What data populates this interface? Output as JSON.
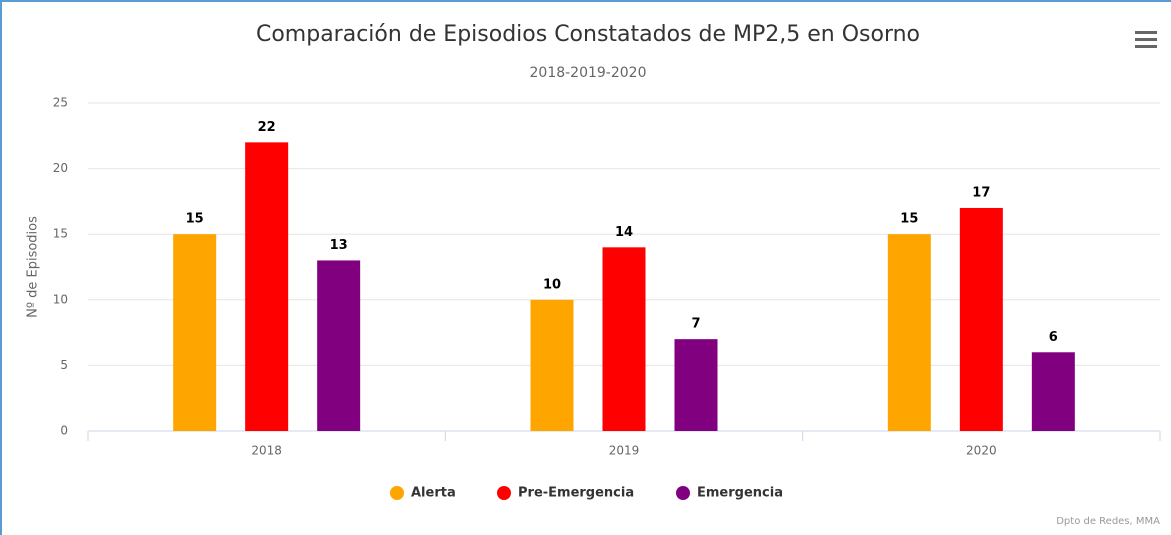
{
  "chart_data": {
    "type": "bar",
    "title": "Comparación de Episodios Constatados de MP2,5 en Osorno",
    "subtitle": "2018-2019-2020",
    "y_label": "Nº de Episodios",
    "credits": "Dpto de Redes, MMA",
    "categories": [
      "2018",
      "2019",
      "2020"
    ],
    "series": [
      {
        "name": "Alerta",
        "color": "#ffa500",
        "values": [
          15,
          10,
          15
        ]
      },
      {
        "name": "Pre-Emergencia",
        "color": "#ff0000",
        "values": [
          22,
          14,
          17
        ]
      },
      {
        "name": "Emergencia",
        "color": "#800080",
        "values": [
          13,
          7,
          6
        ]
      }
    ],
    "ylim": [
      0,
      25
    ],
    "yticks": [
      0,
      5,
      10,
      15,
      20,
      25
    ],
    "grid": true,
    "legend": "bottom"
  }
}
